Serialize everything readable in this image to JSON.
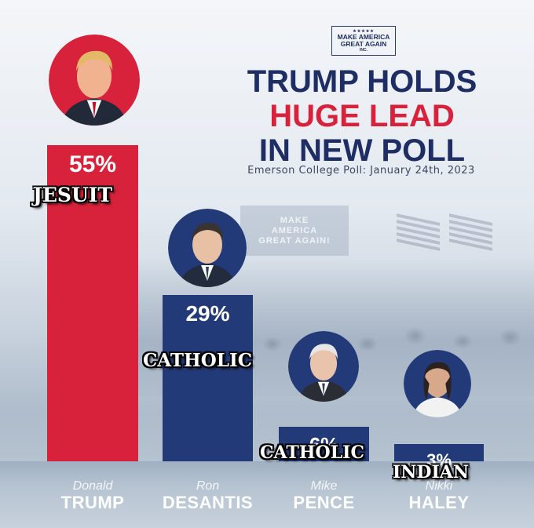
{
  "header": {
    "logo": {
      "stars": "★★★★★",
      "line1": "MAKE AMERICA",
      "line2": "GREAT AGAIN",
      "inc": "INC."
    },
    "title_line1": "TRUMP HOLDS",
    "title_line2": "HUGE LEAD",
    "title_line3": "IN NEW POLL",
    "subtitle": "Emerson College Poll: January 24th, 2023"
  },
  "background": {
    "sign_line1": "MAKE",
    "sign_line2": "AMERICA",
    "sign_line3": "GREAT AGAIN!"
  },
  "colors": {
    "red": "#d8213a",
    "navy": "#233a79",
    "title_navy": "#1e2d63"
  },
  "chart_data": {
    "type": "bar",
    "categories": [
      "Donald TRUMP",
      "Ron DESANTIS",
      "Mike PENCE",
      "Nikki HALEY"
    ],
    "values": [
      55,
      29,
      6,
      3
    ],
    "value_labels": [
      "55%",
      "29%",
      "6%",
      "3%"
    ],
    "title": "TRUMP HOLDS HUGE LEAD IN NEW POLL",
    "subtitle": "Emerson College Poll: January 24th, 2023",
    "ylim": [
      0,
      55
    ],
    "grid": false
  },
  "candidates": [
    {
      "first": "Donald",
      "last": "TRUMP",
      "label": "55%",
      "overlay": "JESUIT",
      "color": "#d8213a"
    },
    {
      "first": "Ron",
      "last": "DESANTIS",
      "label": "29%",
      "overlay": "CATHOLIC",
      "color": "#233a79"
    },
    {
      "first": "Mike",
      "last": "PENCE",
      "label": "6%",
      "overlay": "CATHOLIC",
      "color": "#233a79"
    },
    {
      "first": "Nikki",
      "last": "HALEY",
      "label": "3%",
      "overlay": "INDIAN",
      "color": "#233a79"
    }
  ]
}
